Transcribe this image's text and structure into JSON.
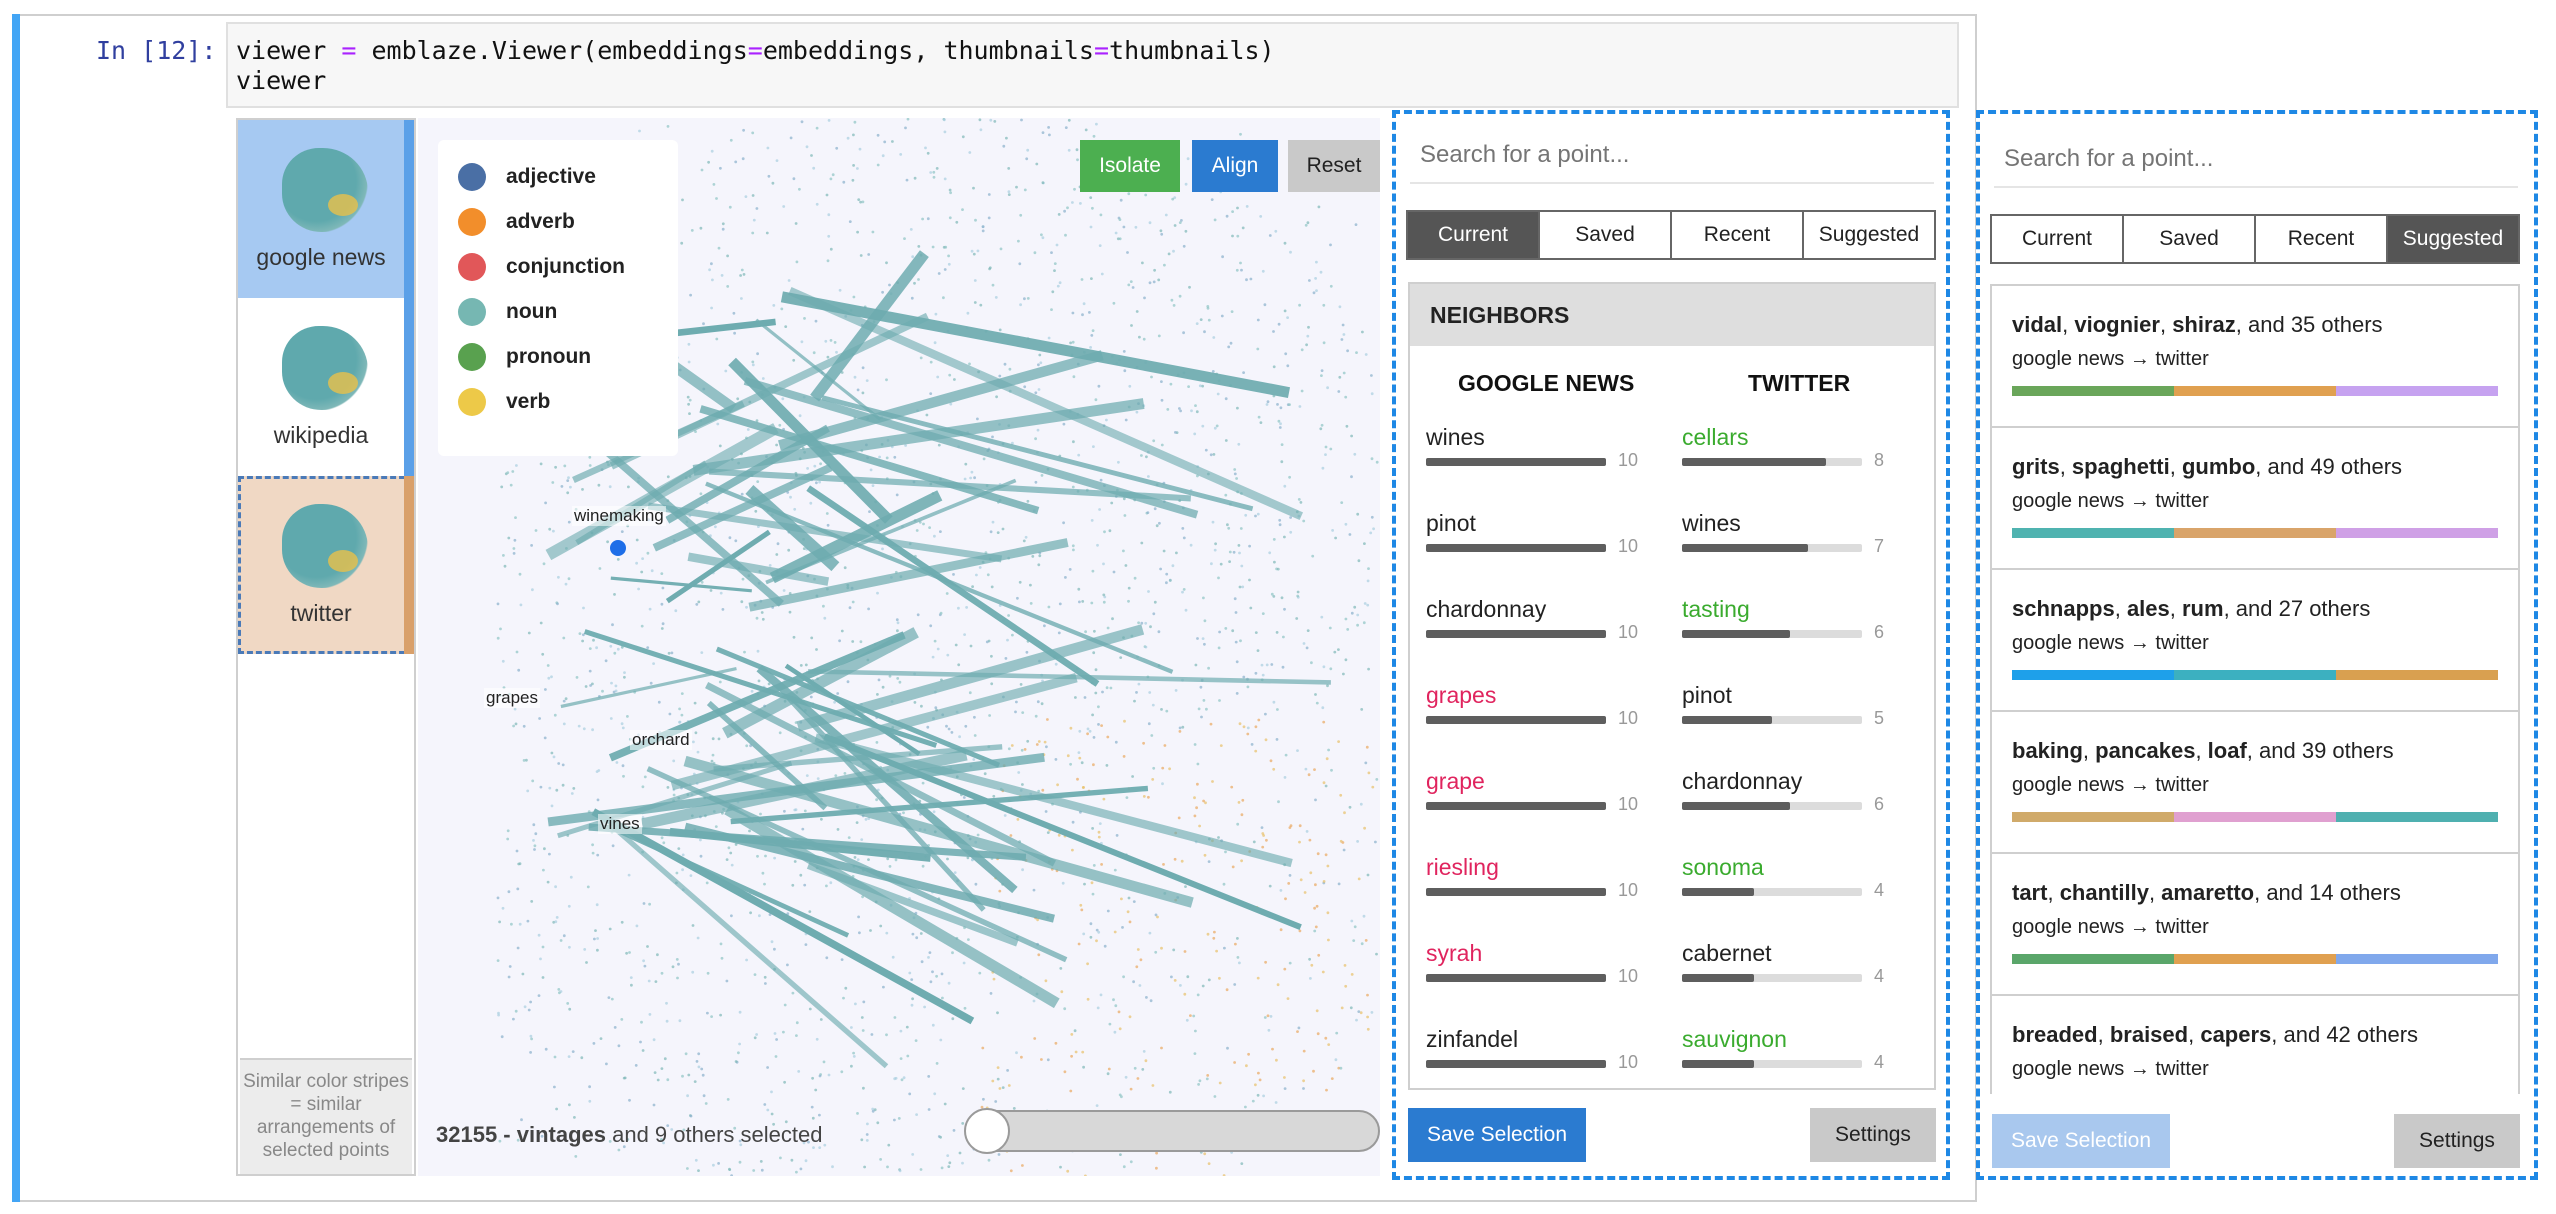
{
  "cell": {
    "prompt": "In [12]:",
    "code_line1_a": "viewer ",
    "code_op": "=",
    "code_line1_b": " emblaze.Viewer(embeddings",
    "code_line1_c": "embeddings, thumbnails",
    "code_line1_d": "thumbnails)",
    "code_line2": "viewer"
  },
  "thumbnails": [
    {
      "label": "google news",
      "bg": "#a6c9f2",
      "stripe": "#5ba0e8"
    },
    {
      "label": "wikipedia",
      "bg": "#ffffff",
      "stripe": "#5ba0e8"
    },
    {
      "label": "twitter",
      "bg": "#f0d8c4",
      "stripe": "#d9a06a"
    }
  ],
  "thumb_hint": "Similar color stripes = similar arrangements of selected points",
  "legend": [
    {
      "label": "adjective",
      "color": "#4a6fa5"
    },
    {
      "label": "adverb",
      "color": "#f28e2b"
    },
    {
      "label": "conjunction",
      "color": "#e15759"
    },
    {
      "label": "noun",
      "color": "#76b7b2"
    },
    {
      "label": "pronoun",
      "color": "#59a14f"
    },
    {
      "label": "verb",
      "color": "#edc948"
    }
  ],
  "map_buttons": {
    "isolate": "Isolate",
    "align": "Align",
    "reset": "Reset"
  },
  "point_labels": {
    "winemaking": "winemaking",
    "grapes": "grapes",
    "orchard": "orchard",
    "vines": "vines"
  },
  "status": {
    "count": "32155 - vintages",
    "rest": " and 9 others selected"
  },
  "colors": {
    "accent": "#2b7bd0",
    "sidebar_border": "#1e88e5",
    "neighbor_red": "#e0245e",
    "neighbor_green": "#3aab2e"
  },
  "sidebar1": {
    "search_placeholder": "Search for a point...",
    "tabs": [
      "Current",
      "Saved",
      "Recent",
      "Suggested"
    ],
    "neighbors_header": "NEIGHBORS",
    "left_column_title": "GOOGLE NEWS",
    "right_column_title": "TWITTER",
    "left_neighbors": [
      {
        "word": "wines",
        "count": "10",
        "fraction": 1.0,
        "color": "#222222"
      },
      {
        "word": "pinot",
        "count": "10",
        "fraction": 1.0,
        "color": "#222222"
      },
      {
        "word": "chardonnay",
        "count": "10",
        "fraction": 1.0,
        "color": "#222222"
      },
      {
        "word": "grapes",
        "count": "10",
        "fraction": 1.0,
        "color": "#e0245e"
      },
      {
        "word": "grape",
        "count": "10",
        "fraction": 1.0,
        "color": "#e0245e"
      },
      {
        "word": "riesling",
        "count": "10",
        "fraction": 1.0,
        "color": "#e0245e"
      },
      {
        "word": "syrah",
        "count": "10",
        "fraction": 1.0,
        "color": "#e0245e"
      },
      {
        "word": "zinfandel",
        "count": "10",
        "fraction": 1.0,
        "color": "#222222"
      }
    ],
    "right_neighbors": [
      {
        "word": "cellars",
        "count": "8",
        "fraction": 0.8,
        "color": "#3aab2e"
      },
      {
        "word": "wines",
        "count": "7",
        "fraction": 0.7,
        "color": "#222222"
      },
      {
        "word": "tasting",
        "count": "6",
        "fraction": 0.6,
        "color": "#3aab2e"
      },
      {
        "word": "pinot",
        "count": "5",
        "fraction": 0.5,
        "color": "#222222"
      },
      {
        "word": "chardonnay",
        "count": "6",
        "fraction": 0.6,
        "color": "#222222"
      },
      {
        "word": "sonoma",
        "count": "4",
        "fraction": 0.4,
        "color": "#3aab2e"
      },
      {
        "word": "cabernet",
        "count": "4",
        "fraction": 0.4,
        "color": "#222222"
      },
      {
        "word": "sauvignon",
        "count": "4",
        "fraction": 0.4,
        "color": "#3aab2e"
      }
    ],
    "save_label": "Save Selection",
    "settings_label": "Settings"
  },
  "sidebar2": {
    "search_placeholder": "Search for a point...",
    "tabs": [
      "Current",
      "Saved",
      "Recent",
      "Suggested"
    ],
    "suggestions": [
      {
        "words": [
          "vidal",
          "viognier",
          "shiraz"
        ],
        "rest": ", and 35 others",
        "sub": "google news → twitter",
        "stripe": [
          "#6aa65a",
          "#e0a050",
          "#c6a2f0"
        ]
      },
      {
        "words": [
          "grits",
          "spaghetti",
          "gumbo"
        ],
        "rest": ", and 49 others",
        "sub": "google news → twitter",
        "stripe": [
          "#4fb3b0",
          "#d9a46a",
          "#cfa0e6"
        ]
      },
      {
        "words": [
          "schnapps",
          "ales",
          "rum"
        ],
        "rest": ", and 27 others",
        "sub": "google news → twitter",
        "stripe": [
          "#1ea0ea",
          "#3cb0c0",
          "#d9a050"
        ]
      },
      {
        "words": [
          "baking",
          "pancakes",
          "loaf"
        ],
        "rest": ", and 39 others",
        "sub": "google news → twitter",
        "stripe": [
          "#d0aa6a",
          "#e0a0d0",
          "#4fb0b0"
        ]
      },
      {
        "words": [
          "tart",
          "chantilly",
          "amaretto"
        ],
        "rest": ", and 14 others",
        "sub": "google news → twitter",
        "stripe": [
          "#5aa66a",
          "#e0a050",
          "#80a8ec"
        ]
      },
      {
        "words": [
          "breaded",
          "braised",
          "capers"
        ],
        "rest": ", and 42 others",
        "sub": "google news → twitter",
        "stripe": [
          "#d0a060",
          "#d4a060",
          "#4fb0b0"
        ]
      }
    ],
    "save_label": "Save Selection",
    "settings_label": "Settings"
  }
}
